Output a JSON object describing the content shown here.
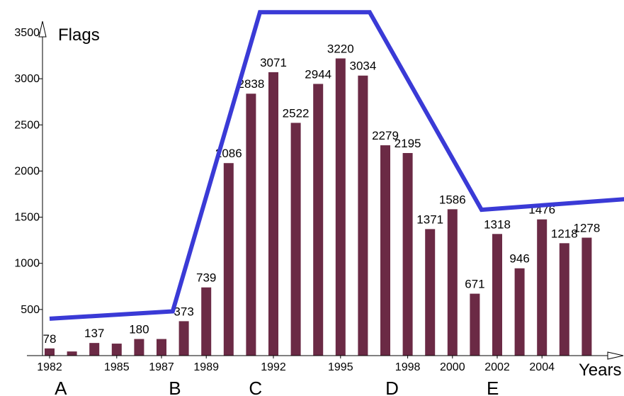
{
  "chart_data": {
    "type": "bar",
    "ylabel": "Flags",
    "xlabel": "Years",
    "ylim": [
      0,
      3500
    ],
    "y_ticks": [
      500,
      1000,
      1500,
      2000,
      2500,
      3000,
      3500
    ],
    "years": [
      1982,
      1983,
      1984,
      1985,
      1986,
      1987,
      1988,
      1989,
      1990,
      1991,
      1992,
      1993,
      1994,
      1995,
      1996,
      1997,
      1998,
      1999,
      2000,
      2001,
      2002,
      2003,
      2004,
      2005,
      2006
    ],
    "values": [
      78,
      45,
      137,
      130,
      180,
      180,
      373,
      739,
      2086,
      2838,
      3071,
      2522,
      2944,
      3220,
      3034,
      2279,
      2195,
      1371,
      1586,
      671,
      1318,
      946,
      1476,
      1218,
      1278
    ],
    "data_labels": [
      "78",
      "",
      "137",
      "",
      "180",
      "",
      "373",
      "739",
      "2086",
      "2838",
      "3071",
      "2522",
      "2944",
      "3220",
      "3034",
      "2279",
      "2195",
      "1371",
      "1586",
      "671",
      "1318",
      "946",
      "1476",
      "1218",
      "1278"
    ],
    "x_tick_labels": [
      "1982",
      "1985",
      "1987",
      "1989",
      "1992",
      "1995",
      "1998",
      "2000",
      "2002",
      "2004"
    ],
    "bar_color": "#6b2a45",
    "trend_color": "#3a3ad6",
    "trend_line": [
      {
        "year": 1982,
        "value": 400
      },
      {
        "year": 1987.5,
        "value": 480
      },
      {
        "year": 1991.4,
        "value": 3720
      },
      {
        "year": 1996.3,
        "value": 3720
      },
      {
        "year": 2001.3,
        "value": 1580
      },
      {
        "year": 2008.0,
        "value": 1700
      }
    ],
    "phase_labels": [
      {
        "label": "A",
        "year": 1982.5
      },
      {
        "label": "B",
        "year": 1987.6
      },
      {
        "label": "C",
        "year": 1991.2
      },
      {
        "label": "D",
        "year": 1997.3
      },
      {
        "label": "E",
        "year": 2001.8
      }
    ]
  }
}
